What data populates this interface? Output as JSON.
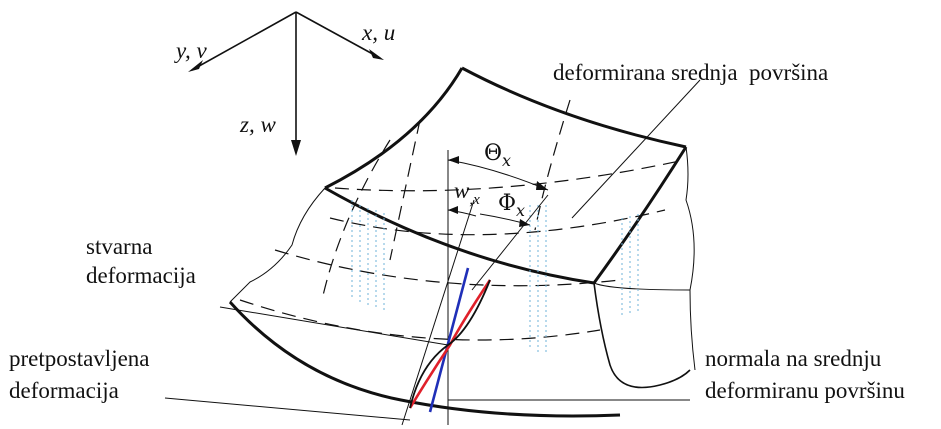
{
  "axes": {
    "y": "y, v",
    "x": "x, u",
    "z": "z, w"
  },
  "labels": {
    "surface": "deformirana srednja  površina",
    "real_def_1": "stvarna",
    "real_def_2": "deformacija",
    "assumed_def_1": "pretpostavljena",
    "assumed_def_2": "deformacija",
    "normal_1": "normala na srednju",
    "normal_2": "deformiranu površinu"
  },
  "symbols": {
    "theta": "Θ",
    "theta_sub": "x",
    "w_main": "w",
    "w_sub": ",x",
    "phi": "Φ",
    "phi_sub": "x"
  },
  "colors": {
    "real_deformation": "#e0202a",
    "assumed_deformation": "#1f2fb8"
  }
}
